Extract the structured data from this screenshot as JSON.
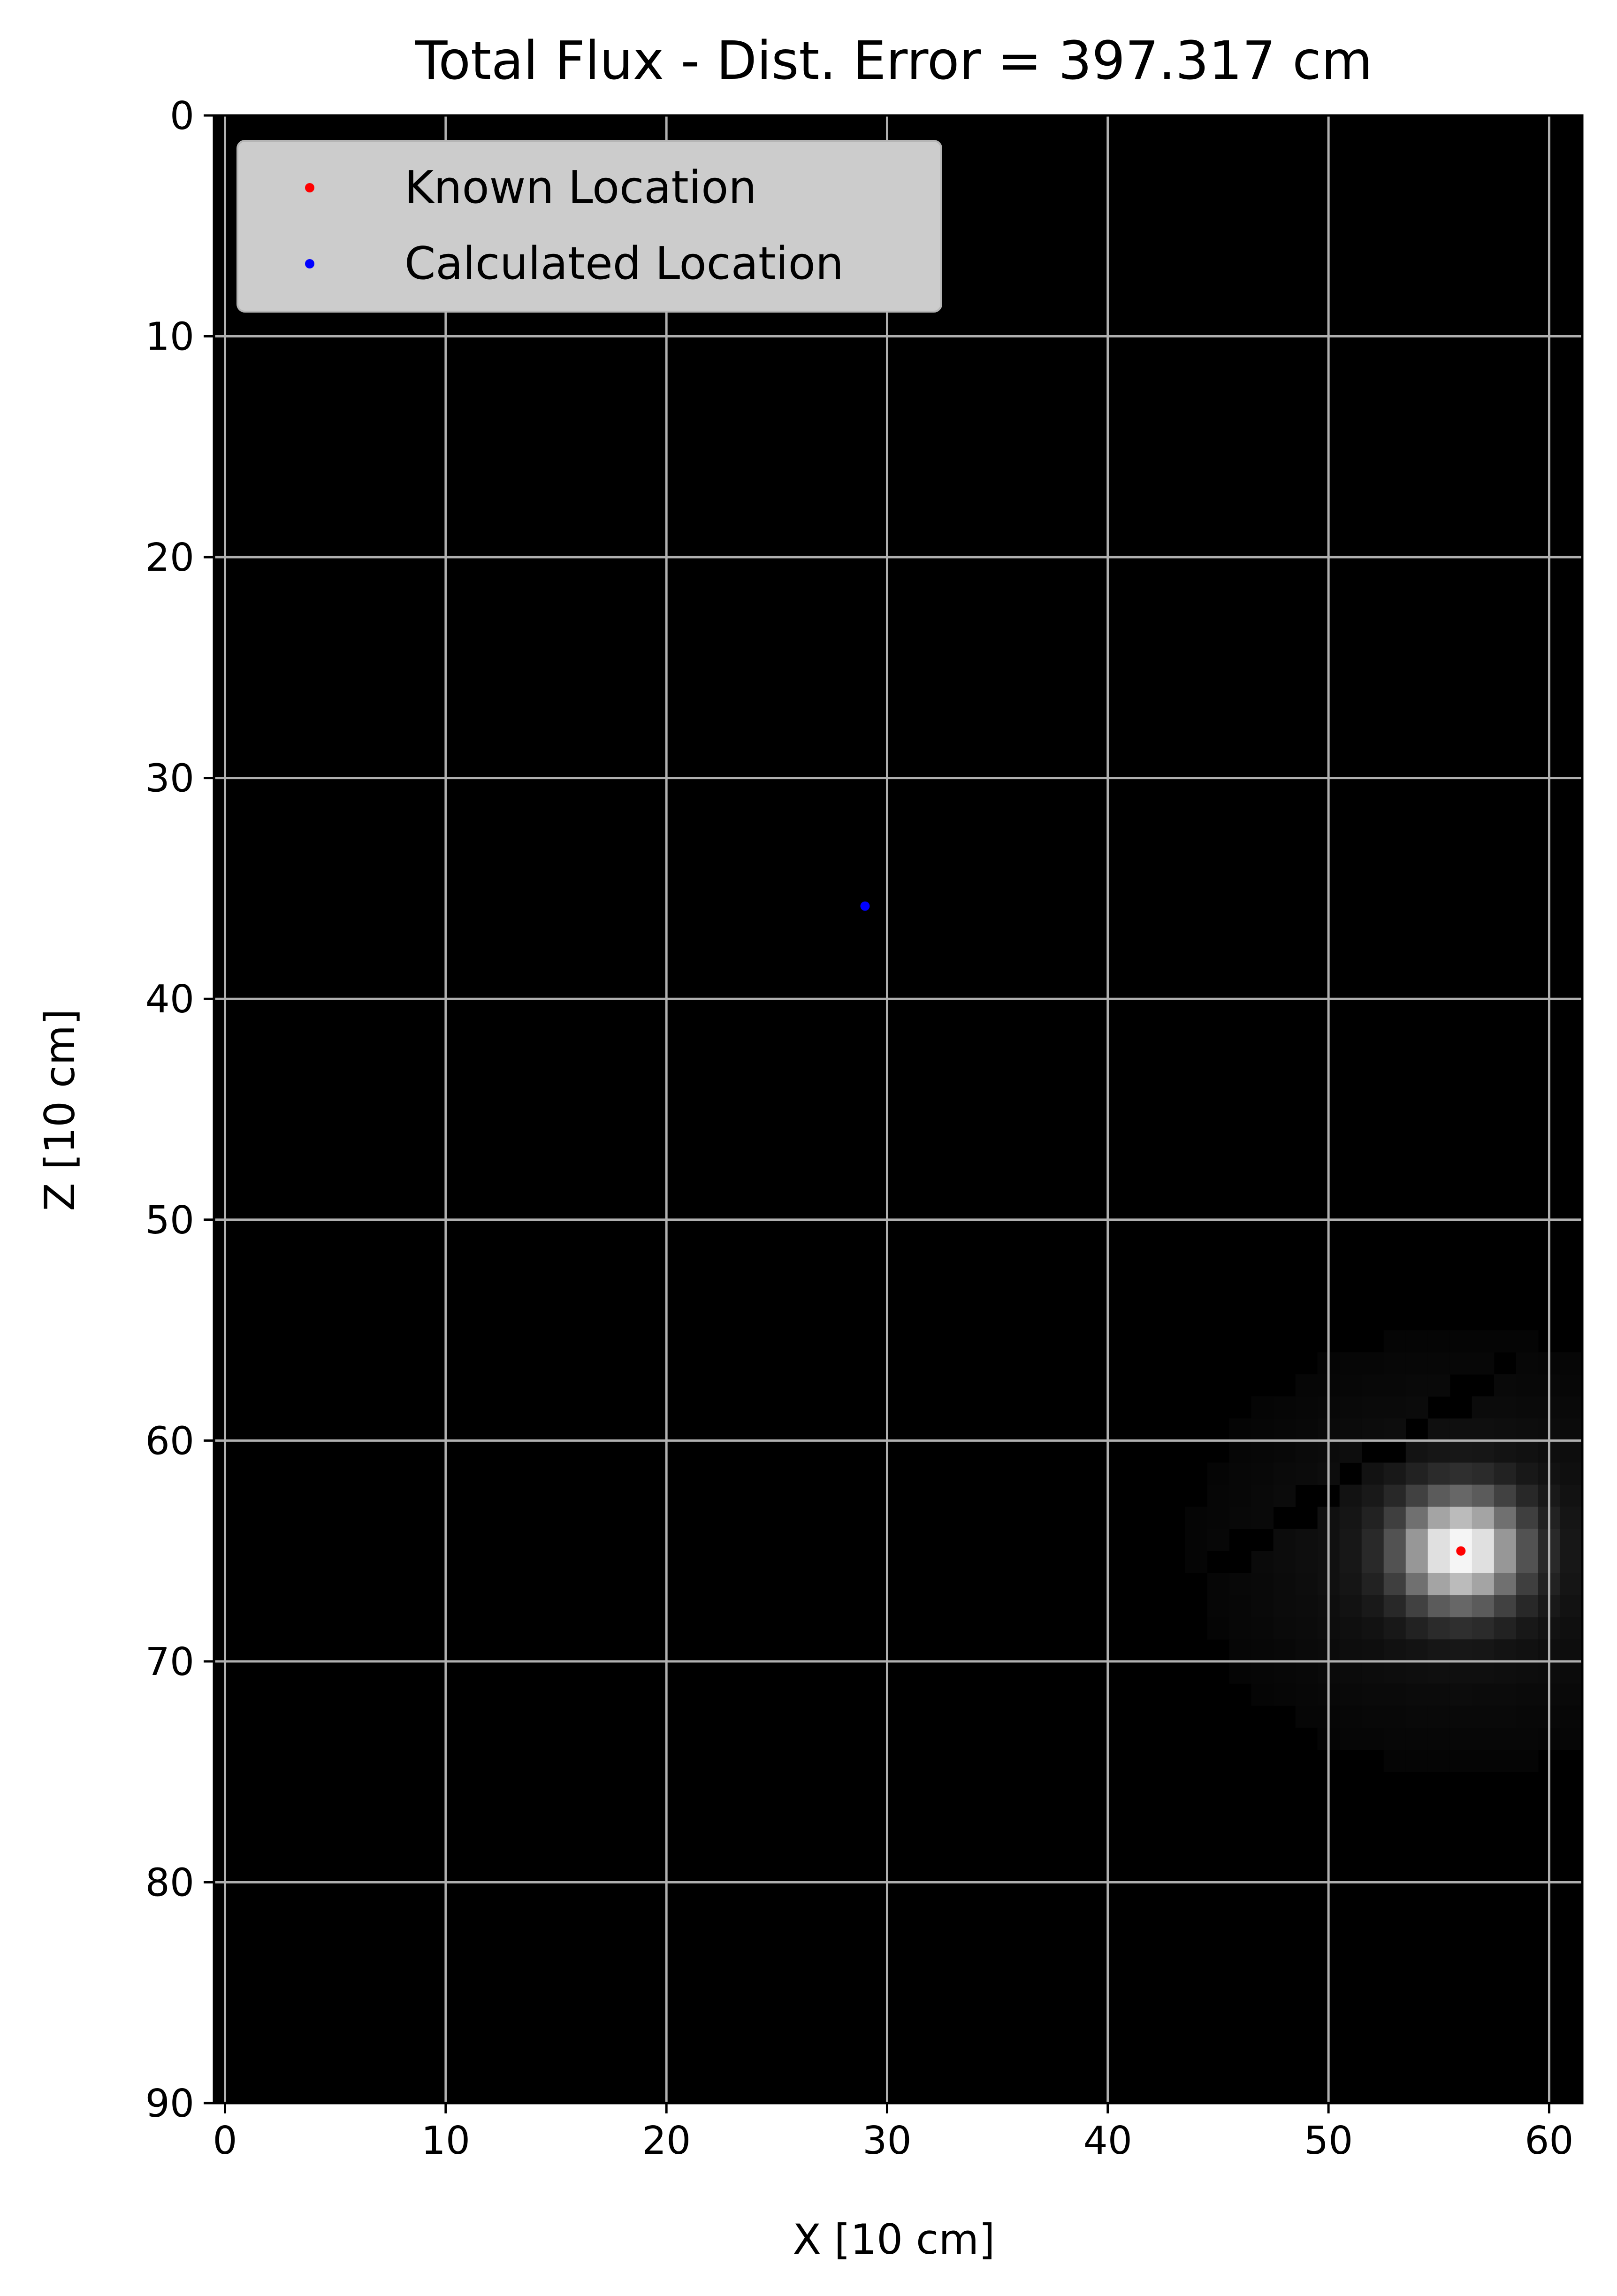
{
  "chart_data": {
    "type": "heatmap",
    "title": "Total Flux - Dist. Error = 397.317 cm",
    "xlabel": "X [10 cm]",
    "ylabel": "Z [10 cm]",
    "xlim": [
      -0.5,
      61.5
    ],
    "ylim": [
      90,
      0
    ],
    "y_axis_inverted": true,
    "grid": true,
    "colormap": "gray",
    "xticks": [
      0,
      10,
      20,
      30,
      40,
      50,
      60
    ],
    "yticks": [
      0,
      10,
      20,
      30,
      40,
      50,
      60,
      70,
      80,
      90
    ],
    "hotspot": {
      "x": 56,
      "z": 65
    },
    "legend_position": "upper-left",
    "series": [
      {
        "name": "Known Location",
        "type": "scatter",
        "color": "#ff0000",
        "points": [
          {
            "x": 56,
            "z": 65
          }
        ]
      },
      {
        "name": "Calculated Location",
        "type": "scatter",
        "color": "#0000ff",
        "points": [
          {
            "x": 29,
            "z": 35.8
          }
        ]
      }
    ]
  }
}
